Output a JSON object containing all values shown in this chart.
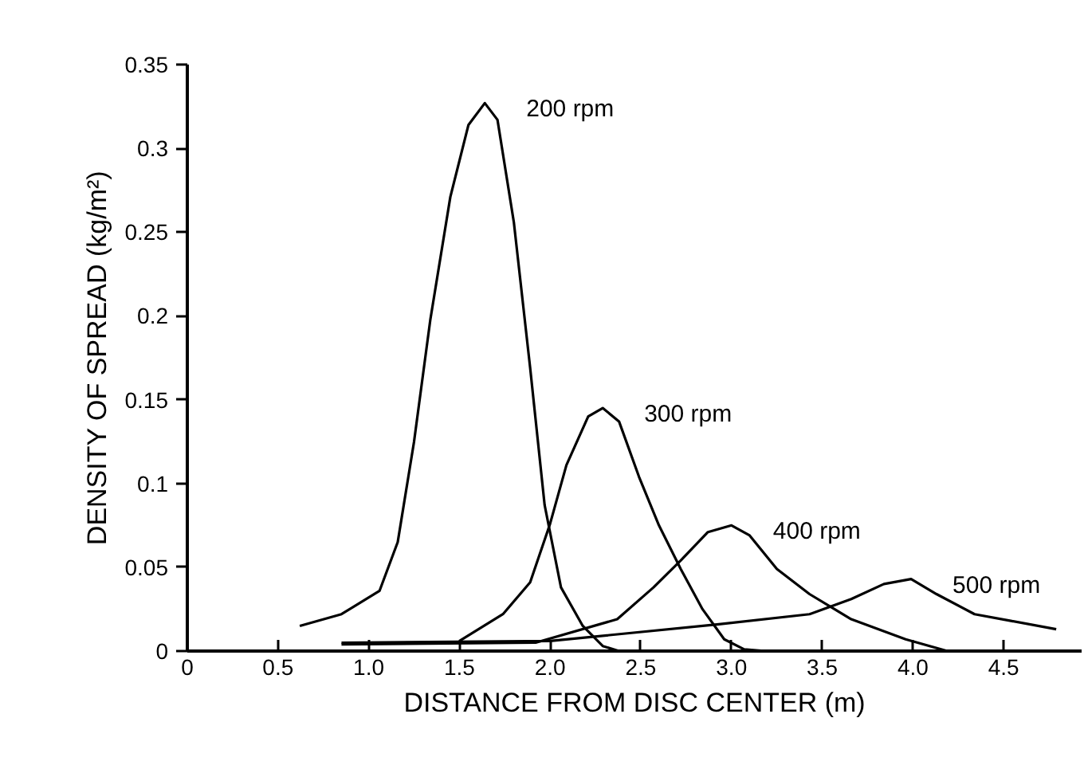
{
  "chart_data": {
    "type": "line",
    "xlabel": "DISTANCE FROM DISC CENTER (m)",
    "ylabel": "DENSITY OF SPREAD (kg/m²)",
    "xlim": [
      0,
      4.93
    ],
    "ylim": [
      0,
      0.35
    ],
    "xticks": [
      0,
      0.5,
      {
        "value": 1,
        "label": "1.0"
      },
      1.5,
      {
        "value": 2,
        "label": "2.0"
      },
      2.5,
      {
        "value": 3,
        "label": "3.0"
      },
      3.5,
      {
        "value": 4,
        "label": "4.0"
      },
      4.5
    ],
    "yticks": [
      0,
      0.05,
      0.1,
      0.15,
      0.2,
      0.25,
      0.3,
      0.35
    ],
    "grid": false,
    "marker": "none",
    "line_style": "solid",
    "series": [
      {
        "name": "200 rpm",
        "color": "#000000",
        "x": [
          0.62,
          0.85,
          1.06,
          1.16,
          1.25,
          1.34,
          1.45,
          1.55,
          1.64,
          1.71,
          1.8,
          1.89,
          1.97,
          2.06,
          2.18,
          2.29,
          2.38
        ],
        "values": [
          0.015,
          0.022,
          0.036,
          0.065,
          0.125,
          0.198,
          0.271,
          0.314,
          0.327,
          0.317,
          0.256,
          0.169,
          0.087,
          0.038,
          0.015,
          0.003,
          0
        ]
      },
      {
        "name": "300 rpm",
        "color": "#000000",
        "x": [
          1.5,
          1.74,
          1.89,
          2.0,
          2.09,
          2.21,
          2.29,
          2.38,
          2.49,
          2.6,
          2.72,
          2.84,
          2.96,
          3.07,
          3.19
        ],
        "values": [
          0.006,
          0.022,
          0.041,
          0.076,
          0.111,
          0.14,
          0.145,
          0.137,
          0.104,
          0.075,
          0.049,
          0.025,
          0.007,
          0.001,
          0
        ]
      },
      {
        "name": "400 rpm",
        "color": "#000000",
        "x": [
          0.85,
          1.92,
          2.37,
          2.57,
          2.72,
          2.87,
          3.0,
          3.1,
          3.25,
          3.43,
          3.66,
          3.96,
          4.19
        ],
        "values": [
          0.004,
          0.005,
          0.019,
          0.038,
          0.054,
          0.071,
          0.075,
          0.069,
          0.049,
          0.034,
          0.019,
          0.007,
          0
        ]
      },
      {
        "name": "500 rpm",
        "color": "#000000",
        "x": [
          0.85,
          2.0,
          2.93,
          3.43,
          3.66,
          3.84,
          3.99,
          4.13,
          4.34,
          4.54,
          4.79
        ],
        "values": [
          0.005,
          0.006,
          0.016,
          0.022,
          0.031,
          0.04,
          0.043,
          0.034,
          0.022,
          0.018,
          0.013
        ]
      }
    ]
  }
}
